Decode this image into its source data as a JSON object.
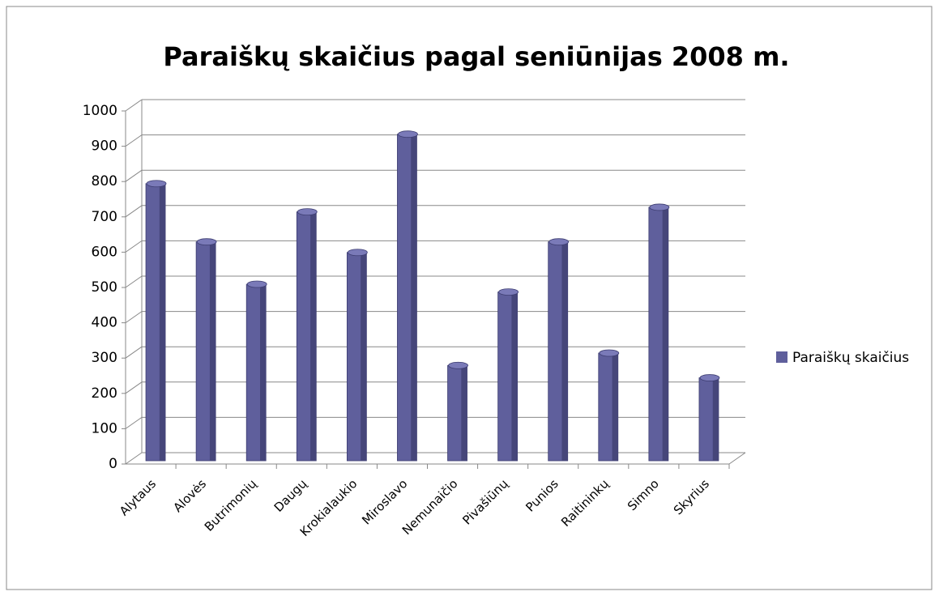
{
  "chart_data": {
    "type": "bar",
    "title": "Paraiškų skaičius pagal seniūnijas 2008 m.",
    "categories": [
      "Alytaus",
      "Alovės",
      "Butrimonių",
      "Daugų",
      "Krokialaukio",
      "Miroslavo",
      "Nemunaičio",
      "Pivašiūnų",
      "Punios",
      "Raitininkų",
      "Simno",
      "Skyrius"
    ],
    "series": [
      {
        "name": "Paraiškų skaičius",
        "color": "#5f5f9c",
        "values": [
          785,
          620,
          500,
          705,
          590,
          925,
          270,
          478,
          620,
          305,
          718,
          235
        ]
      }
    ],
    "ylim": [
      0,
      1000
    ],
    "yticks": [
      0,
      100,
      200,
      300,
      400,
      500,
      600,
      700,
      800,
      900,
      1000
    ],
    "grid": true,
    "legend": "right"
  }
}
